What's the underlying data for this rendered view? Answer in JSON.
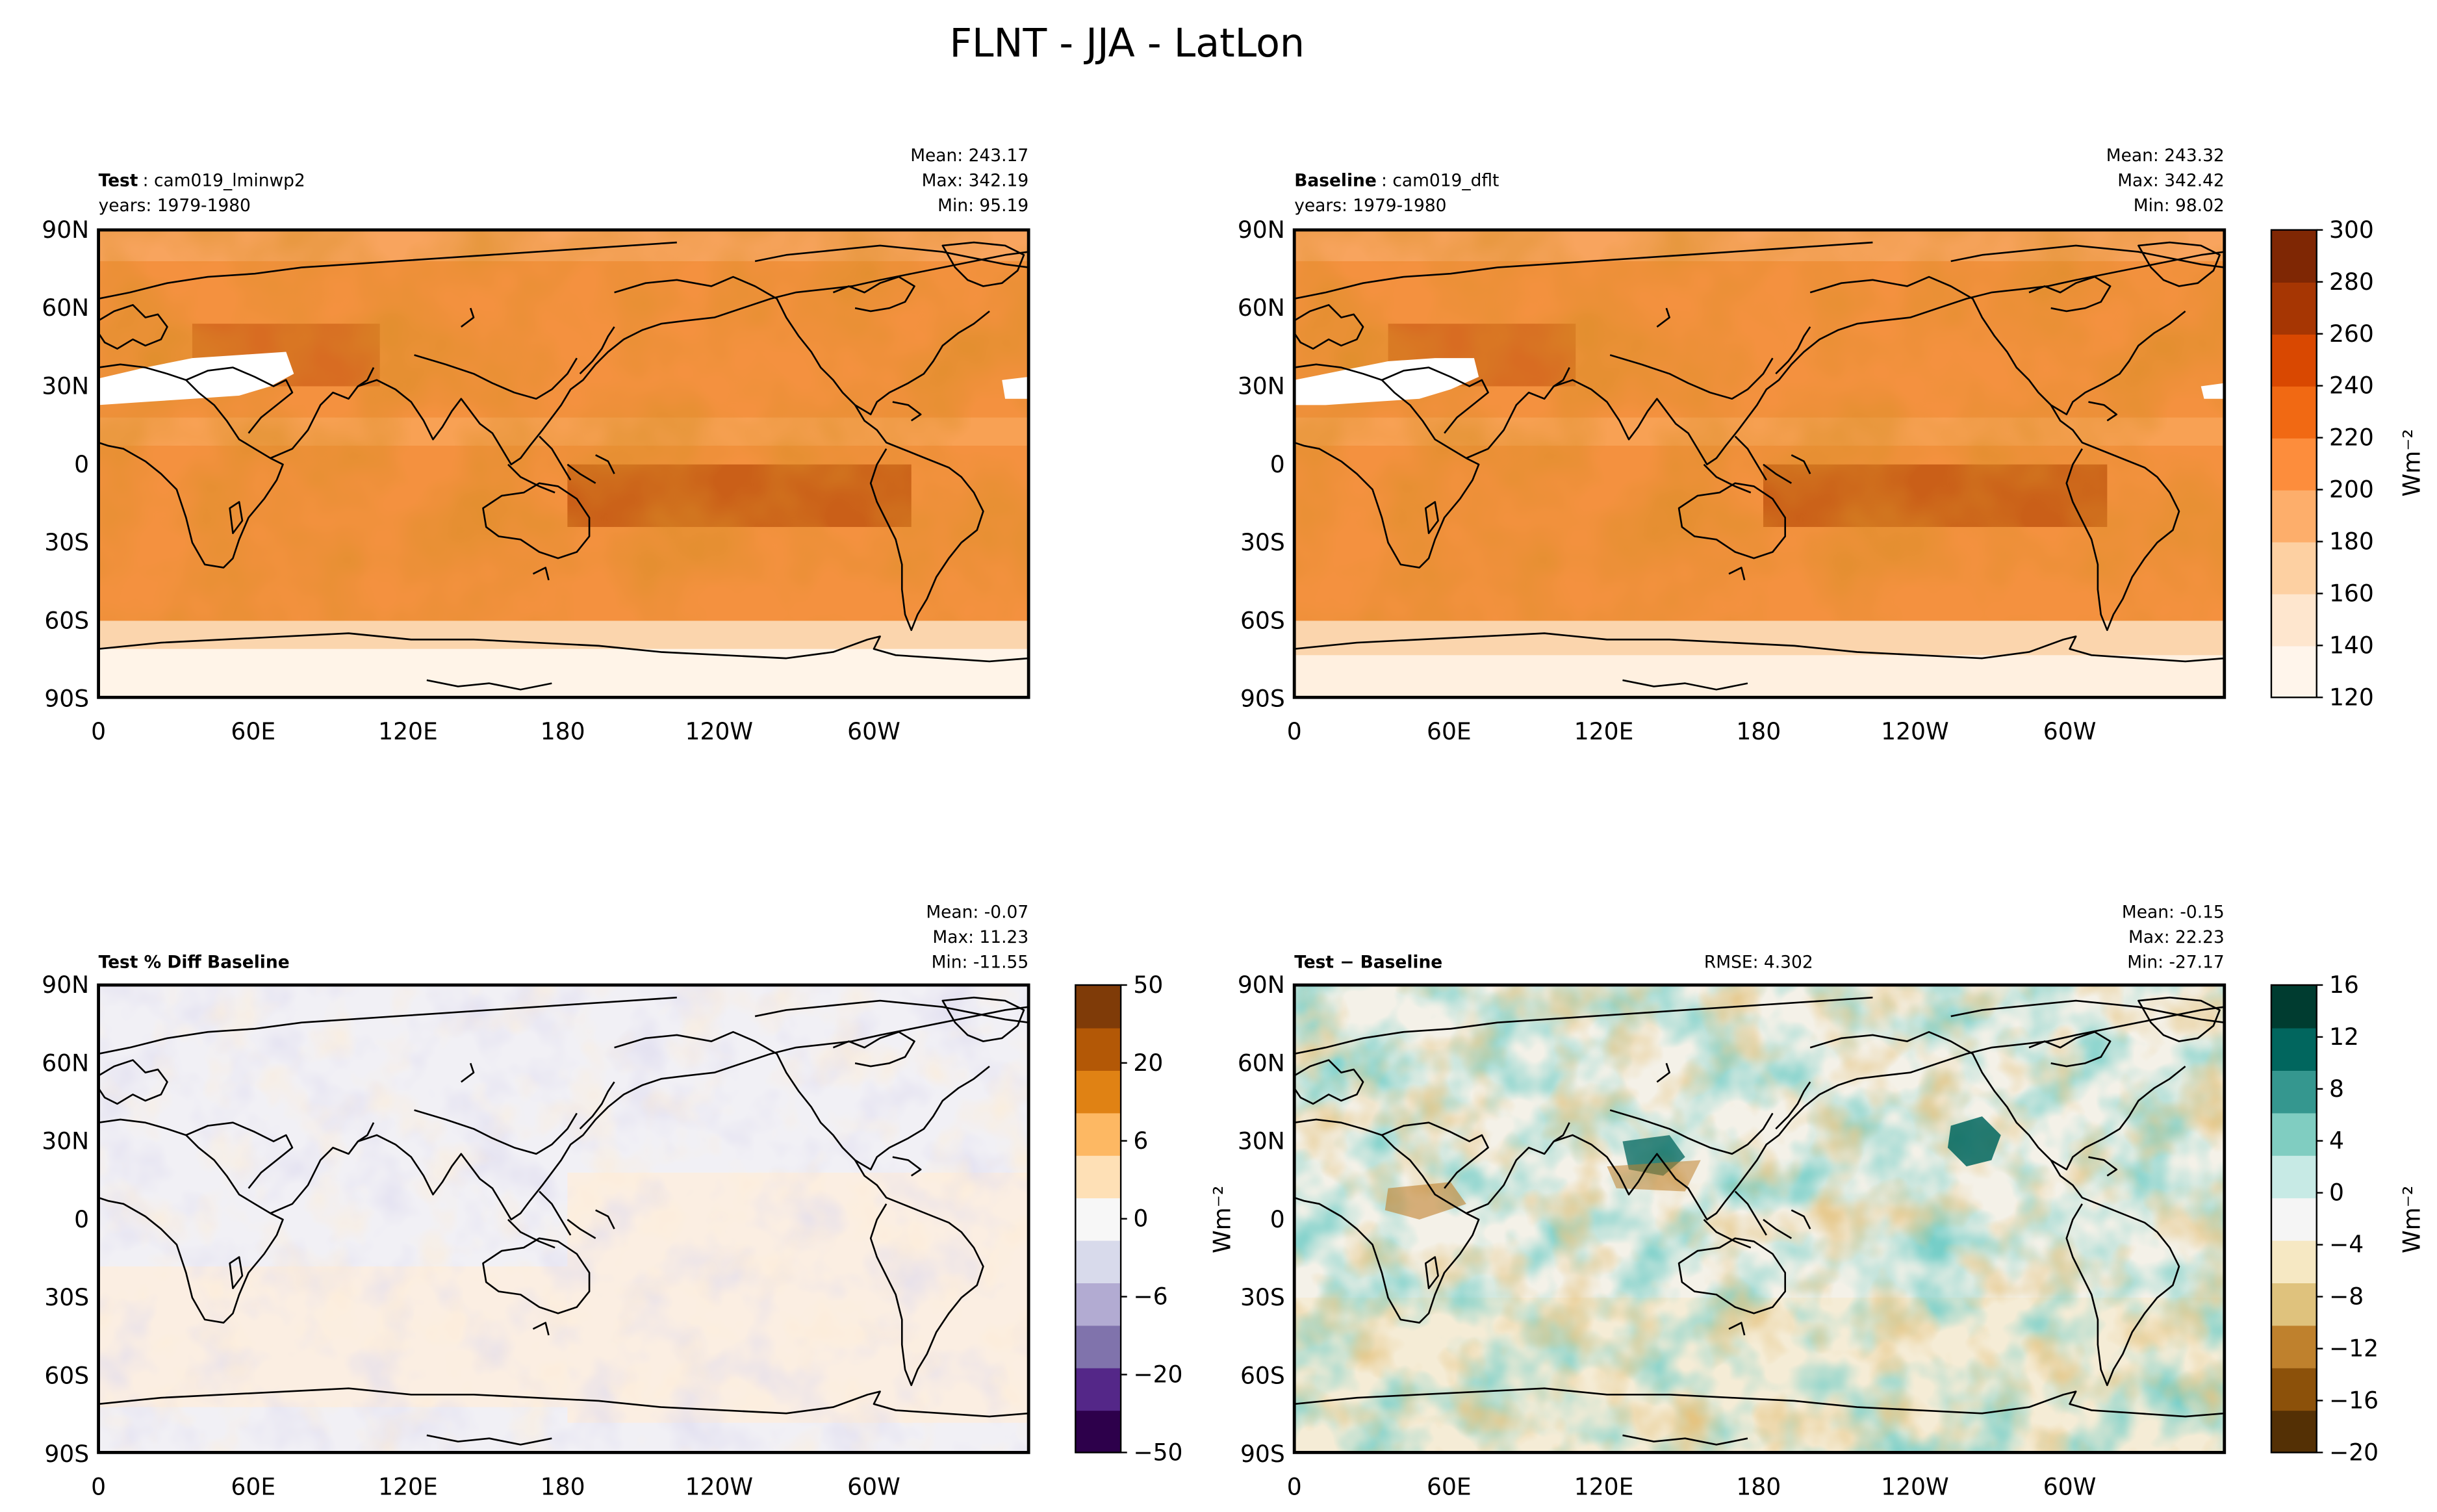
{
  "figure_title": "FLNT - JJA - LatLon",
  "panels": [
    {
      "name_bold": "Test",
      "name": "cam019_lminwp2",
      "years": "years: 1979-1980",
      "stats": [
        "Mean: 243.17",
        "Max: 342.19",
        "Min: 95.19"
      ]
    },
    {
      "name_bold": "Baseline",
      "name": "cam019_dflt",
      "years": "years: 1979-1980",
      "stats": [
        "Mean: 243.32",
        "Max: 342.42",
        "Min: 98.02"
      ]
    },
    {
      "name_bold": "Test % Diff Baseline",
      "name": "",
      "years": "",
      "stats": [
        "Mean: -0.07",
        "Max: 11.23",
        "Min: -11.55"
      ]
    },
    {
      "name_bold": "Test − Baseline",
      "name": "",
      "years": "",
      "rmse": "RMSE: 4.302",
      "stats": [
        "Mean: -0.15",
        "Max: 22.23",
        "Min: -27.17"
      ]
    }
  ],
  "colorbars": {
    "abs": {
      "label": "Wm⁻²",
      "ticks": [
        "120",
        "140",
        "160",
        "180",
        "200",
        "220",
        "240",
        "260",
        "280",
        "300"
      ],
      "colors": [
        "#fff5eb",
        "#fee6ce",
        "#fdd0a2",
        "#fdae6b",
        "#fd8d3c",
        "#f16913",
        "#d94801",
        "#a63603",
        "#7f2704"
      ]
    },
    "pct": {
      "label": "",
      "ticks": [
        "−50",
        "−20",
        "−6",
        "0",
        "6",
        "20",
        "50"
      ],
      "colors": [
        "#2d004b",
        "#542788",
        "#8073ac",
        "#b2abd2",
        "#d8daeb",
        "#f7f7f7",
        "#fee0b6",
        "#fdb863",
        "#e08214",
        "#b35806",
        "#7f3b08"
      ]
    },
    "diff": {
      "label": "Wm⁻²",
      "ticks": [
        "−20",
        "−16",
        "−12",
        "−8",
        "−4",
        "0",
        "4",
        "8",
        "12",
        "16"
      ],
      "colors": [
        "#543005",
        "#8c510a",
        "#bf812d",
        "#dfc27d",
        "#f6e8c3",
        "#f5f5f5",
        "#c7eae5",
        "#80cdc1",
        "#35978f",
        "#01665e",
        "#003c30"
      ]
    }
  },
  "axes": {
    "yticks": [
      "90N",
      "60N",
      "30N",
      "0",
      "30S",
      "60S",
      "90S"
    ],
    "xticks": [
      "0",
      "60E",
      "120E",
      "180",
      "120W",
      "60W"
    ],
    "diff_ylabel": "Wm⁻²"
  },
  "chart_data": [
    {
      "type": "heatmap",
      "title": "Test: cam019_lminwp2",
      "field": "FLNT",
      "season": "JJA",
      "years": "1979-1980",
      "units": "Wm⁻²",
      "x": [
        "0",
        "60E",
        "120E",
        "180",
        "120W",
        "60W"
      ],
      "y": [
        "90N",
        "60N",
        "30N",
        "0",
        "30S",
        "60S",
        "90S"
      ],
      "mean": 243.17,
      "max": 342.19,
      "min": 95.19,
      "clim": [
        120,
        310
      ]
    },
    {
      "type": "heatmap",
      "title": "Baseline: cam019_dflt",
      "field": "FLNT",
      "season": "JJA",
      "years": "1979-1980",
      "units": "Wm⁻²",
      "x": [
        "0",
        "60E",
        "120E",
        "180",
        "120W",
        "60W"
      ],
      "y": [
        "90N",
        "60N",
        "30N",
        "0",
        "30S",
        "60S",
        "90S"
      ],
      "mean": 243.32,
      "max": 342.42,
      "min": 98.02,
      "clim": [
        120,
        310
      ]
    },
    {
      "type": "heatmap",
      "title": "Test % Diff Baseline",
      "x": [
        "0",
        "60E",
        "120E",
        "180",
        "120W",
        "60W"
      ],
      "y": [
        "90N",
        "60N",
        "30N",
        "0",
        "30S",
        "60S",
        "90S"
      ],
      "mean": -0.07,
      "max": 11.23,
      "min": -11.55,
      "colorbar_ticks": [
        -50,
        -20,
        -6,
        0,
        6,
        20,
        50
      ]
    },
    {
      "type": "heatmap",
      "title": "Test − Baseline",
      "units": "Wm⁻²",
      "x": [
        "0",
        "60E",
        "120E",
        "180",
        "120W",
        "60W"
      ],
      "y": [
        "90N",
        "60N",
        "30N",
        "0",
        "30S",
        "60S",
        "90S"
      ],
      "mean": -0.15,
      "max": 22.23,
      "min": -27.17,
      "rmse": 4.302,
      "clim": [
        -20,
        18
      ]
    }
  ]
}
